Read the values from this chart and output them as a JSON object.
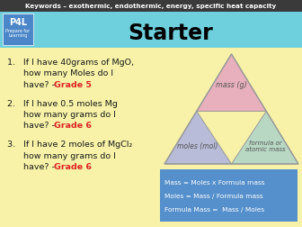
{
  "title": "Starter",
  "keywords_bar": "Keywords – exothermic, endothermic, energy, specific heat capacity",
  "keywords_bar_bg": "#3a3a3a",
  "keywords_bar_fg": "#ffffff",
  "header_bg": "#6dd0dc",
  "body_bg": "#f7f2a8",
  "p4l_bg": "#4a86c8",
  "p4l_text": "P4L",
  "p4l_subtext": "Prepare for\nLearning",
  "questions_text": [
    [
      "1.   If I have 40grams of MgO,",
      "      how many Moles do I",
      "      have? – ",
      "Grade 5"
    ],
    [
      "2.   If I have 0.5 moles Mg",
      "      how many grams do I",
      "      have? - ",
      "Grade 6"
    ],
    [
      "3.   If I have 2 moles of MgCl₂",
      "      how many grams do I",
      "      have? - ",
      "Grade 6"
    ]
  ],
  "question_color": "#1a1a1a",
  "grade_color": "#dd2222",
  "triangle_top_color": "#e8b0bc",
  "triangle_bl_color": "#b8bcd8",
  "triangle_br_color": "#b8d8c4",
  "triangle_outline": "#999999",
  "triangle_top_label": "mass (g)",
  "triangle_bl_label": "moles (mol)",
  "triangle_br_label": "formula or\natomic mass",
  "formula_box_bg": "#5590cc",
  "formula_lines": [
    "Mass = Moles x Formula mass",
    "Moles = Mass / Formula mass",
    "Formula Mass =  Mass / Moles"
  ],
  "formula_text_color": "#ffffff"
}
